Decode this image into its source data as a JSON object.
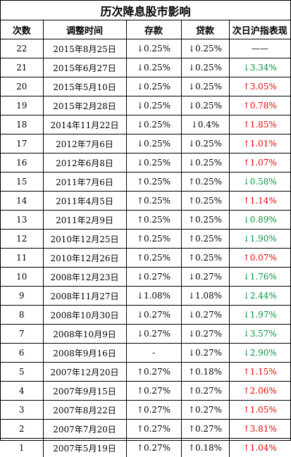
{
  "title": "历次降息股市影响",
  "headers": [
    "次数",
    "调整时间",
    "存款",
    "贷款",
    "次日沪指表现"
  ],
  "colors": {
    "up": "#e60000",
    "down": "#00913a"
  },
  "rows": [
    {
      "n": "22",
      "date": "2015年8月25日",
      "dep": "↓0.25%",
      "loan": "↓0.25%",
      "perf": "——",
      "dir": "flat"
    },
    {
      "n": "21",
      "date": "2015年6月27日",
      "dep": "↓0.25%",
      "loan": "↓0.25%",
      "perf": "↓3.34%",
      "dir": "down"
    },
    {
      "n": "20",
      "date": "2015年5月10日",
      "dep": "↓0.25%",
      "loan": "↓0.25%",
      "perf": "↑3.05%",
      "dir": "up"
    },
    {
      "n": "19",
      "date": "2015年2月28日",
      "dep": "↓0.25%",
      "loan": "↓0.25%",
      "perf": "↑0.78%",
      "dir": "up"
    },
    {
      "n": "18",
      "date": "2014年11月22日",
      "dep": "↓0.25%",
      "loan": "↓0.4%",
      "perf": "↑1.85%",
      "dir": "up"
    },
    {
      "n": "17",
      "date": "2012年7月6日",
      "dep": "↓0.25%",
      "loan": "↓0.25%",
      "perf": "↑1.01%",
      "dir": "up"
    },
    {
      "n": "16",
      "date": "2012年6月8日",
      "dep": "↓0.25%",
      "loan": "↓0.25%",
      "perf": "↑1.07%",
      "dir": "up"
    },
    {
      "n": "15",
      "date": "2011年7月6日",
      "dep": "↑0.25%",
      "loan": "↑0.25%",
      "perf": "↓0.58%",
      "dir": "down"
    },
    {
      "n": "14",
      "date": "2011年4月5日",
      "dep": "↑0.25%",
      "loan": "↑0.25%",
      "perf": "↑1.14%",
      "dir": "up"
    },
    {
      "n": "13",
      "date": "2011年2月9日",
      "dep": "↑0.25%",
      "loan": "↑0.25%",
      "perf": "↓0.89%",
      "dir": "down"
    },
    {
      "n": "12",
      "date": "2010年12月25日",
      "dep": "↑0.25%",
      "loan": "↑0.25%",
      "perf": "↓1.90%",
      "dir": "down"
    },
    {
      "n": "11",
      "date": "2010年12月26日",
      "dep": "↑0.25%",
      "loan": "↑0.25%",
      "perf": "↑0.07%",
      "dir": "up"
    },
    {
      "n": "10",
      "date": "2008年12月23日",
      "dep": "↓0.27%",
      "loan": "↓0.27%",
      "perf": "↓1.76%",
      "dir": "down"
    },
    {
      "n": "9",
      "date": "2008年11月27日",
      "dep": "↓1.08%",
      "loan": "↓1.08%",
      "perf": "↓2.44%",
      "dir": "down"
    },
    {
      "n": "8",
      "date": "2008年10月30日",
      "dep": "↓0.27%",
      "loan": "↓0.27%",
      "perf": "↓1.97%",
      "dir": "down"
    },
    {
      "n": "7",
      "date": "2008年10月9日",
      "dep": "↓0.27%",
      "loan": "↓0.27%",
      "perf": "↓3.57%",
      "dir": "down"
    },
    {
      "n": "6",
      "date": "2008年9月16日",
      "dep": "-",
      "loan": "↓0.27%",
      "perf": "↓2.90%",
      "dir": "down"
    },
    {
      "n": "5",
      "date": "2007年12月20日",
      "dep": "↑0.27%",
      "loan": "↑0.18%",
      "perf": "↑1.15%",
      "dir": "up"
    },
    {
      "n": "4",
      "date": "2007年9月15日",
      "dep": "↑0.27%",
      "loan": "↑0.27%",
      "perf": "↑2.06%",
      "dir": "up"
    },
    {
      "n": "3",
      "date": "2007年8月22日",
      "dep": "↑0.27%",
      "loan": "↑0.27%",
      "perf": "↑1.05%",
      "dir": "up"
    },
    {
      "n": "2",
      "date": "2007年7月20日",
      "dep": "↑0.27%",
      "loan": "↑0.27%",
      "perf": "↑3.81%",
      "dir": "up"
    },
    {
      "n": "1",
      "date": "2007年5月19日",
      "dep": "↑0.27%",
      "loan": "↑0.18%",
      "perf": "↑1.04%",
      "dir": "up"
    }
  ]
}
